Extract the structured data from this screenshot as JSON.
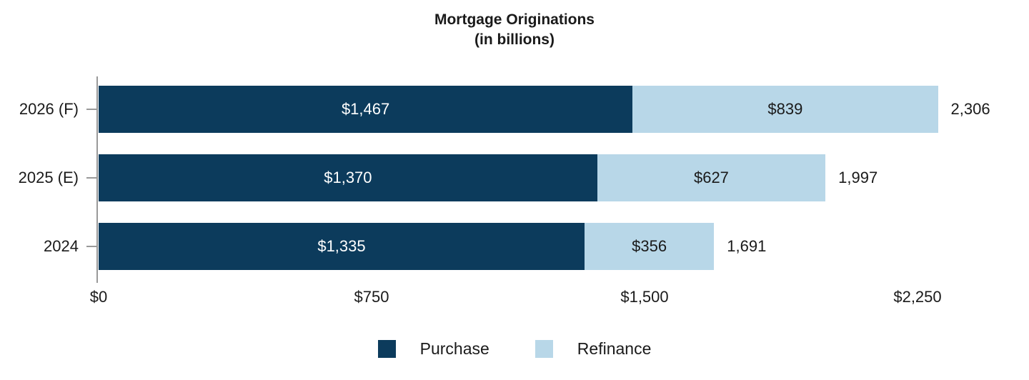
{
  "chart_data": {
    "type": "bar",
    "orientation": "horizontal",
    "stacked": true,
    "title": "Mortgage Originations",
    "subtitle": "(in billions)",
    "categories": [
      "2026 (F)",
      "2025 (E)",
      "2024"
    ],
    "series": [
      {
        "name": "Purchase",
        "color": "#0c3b5c",
        "label_color": "#ffffff",
        "values": [
          1467,
          1370,
          1335
        ],
        "value_labels": [
          "$1,467",
          "$1,370",
          "$1,335"
        ]
      },
      {
        "name": "Refinance",
        "color": "#b8d7e8",
        "label_color": "#1a1a1a",
        "values": [
          839,
          627,
          356
        ],
        "value_labels": [
          "$839",
          "$627",
          "$356"
        ]
      }
    ],
    "totals": [
      2306,
      1997,
      1691
    ],
    "total_labels": [
      "2,306",
      "1,997",
      "1,691"
    ],
    "x_axis": {
      "ticks": [
        0,
        750,
        1500,
        2250
      ],
      "tick_labels": [
        "$0",
        "$750",
        "$1,500",
        "$2,250"
      ],
      "xlim": [
        0,
        2550
      ]
    },
    "legend": {
      "position": "bottom-center",
      "items": [
        {
          "label": "Purchase",
          "color": "#0c3b5c"
        },
        {
          "label": "Refinance",
          "color": "#b8d7e8"
        }
      ]
    },
    "grid": false,
    "axis_color": "#999999"
  }
}
